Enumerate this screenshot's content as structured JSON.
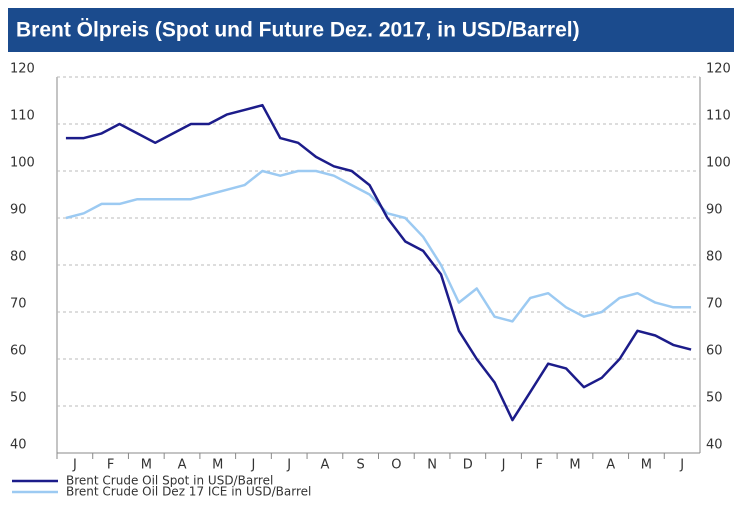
{
  "chart_data": {
    "type": "line",
    "title": "Brent Ölpreis (Spot und Future Dez. 2017, in USD/Barrel)",
    "categories": [
      "J",
      null,
      "F",
      null,
      "M",
      null,
      "A",
      null,
      "M",
      null,
      "J",
      null,
      "J",
      null,
      "A",
      null,
      "S",
      null,
      "O",
      null,
      "N",
      null,
      "D",
      null,
      "J",
      null,
      "F",
      null,
      "M",
      null,
      "A",
      null,
      "M",
      null,
      "J",
      null
    ],
    "series": [
      {
        "name": "Brent Crude Oil Spot in USD/Barrel",
        "color": "#1c1c8a",
        "values": [
          107,
          107,
          108,
          110,
          108,
          106,
          108,
          110,
          110,
          112,
          113,
          114,
          107,
          106,
          103,
          101,
          100,
          97,
          90,
          85,
          83,
          78,
          66,
          60,
          55,
          47,
          53,
          59,
          58,
          54,
          56,
          60,
          66,
          65,
          63,
          62
        ]
      },
      {
        "name": "Brent Crude Oil Dez 17 ICE in USD/Barrel",
        "color": "#9ccaf2",
        "values": [
          90,
          91,
          93,
          93,
          94,
          94,
          94,
          94,
          95,
          96,
          97,
          100,
          99,
          100,
          100,
          99,
          97,
          95,
          91,
          90,
          86,
          80,
          72,
          75,
          69,
          68,
          73,
          74,
          71,
          69,
          70,
          73,
          74,
          72,
          71,
          71
        ]
      }
    ],
    "ylim": [
      40,
      120
    ],
    "yticks": [
      40,
      50,
      60,
      70,
      80,
      90,
      100,
      110,
      120
    ],
    "grid": true
  }
}
